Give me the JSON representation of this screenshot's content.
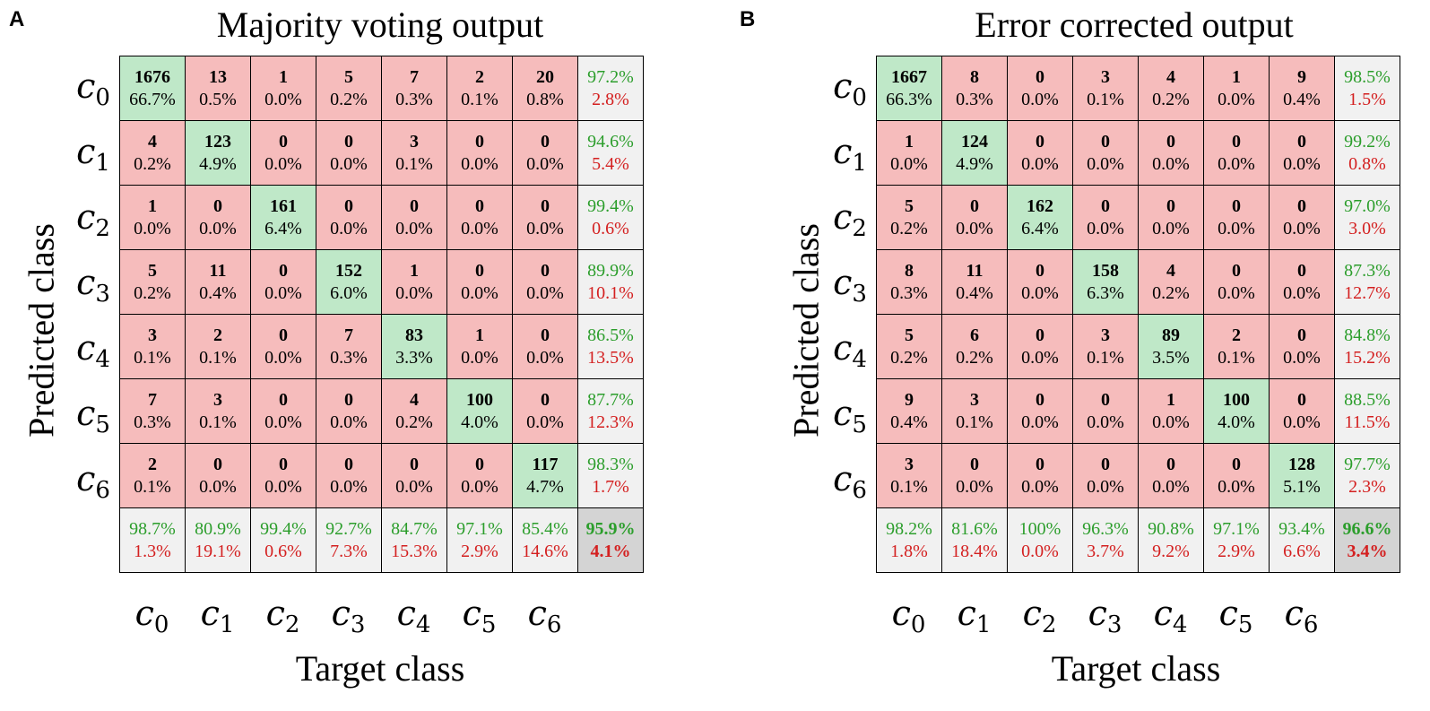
{
  "chart_data": [
    {
      "type": "heatmap",
      "panel_label": "A",
      "title": "Majority voting output",
      "xlabel": "Target class",
      "ylabel": "Predicted class",
      "classes": [
        [
          "c",
          "0"
        ],
        [
          "c",
          "1"
        ],
        [
          "c",
          "2"
        ],
        [
          "c",
          "3"
        ],
        [
          "c",
          "4"
        ],
        [
          "c",
          "5"
        ],
        [
          "c",
          "6"
        ]
      ],
      "colors": {
        "diag": "#bfe8c8",
        "off": "#f6bcbc",
        "summary": "#f1f1f1",
        "corner": "#d4d4d4",
        "acc": "#2c9e2c",
        "err": "#d42020"
      },
      "rows": [
        {
          "cells": [
            [
              "1676",
              "66.7%"
            ],
            [
              "13",
              "0.5%"
            ],
            [
              "1",
              "0.0%"
            ],
            [
              "5",
              "0.2%"
            ],
            [
              "7",
              "0.3%"
            ],
            [
              "2",
              "0.1%"
            ],
            [
              "20",
              "0.8%"
            ]
          ],
          "acc": "97.2%",
          "err": "2.8%"
        },
        {
          "cells": [
            [
              "4",
              "0.2%"
            ],
            [
              "123",
              "4.9%"
            ],
            [
              "0",
              "0.0%"
            ],
            [
              "0",
              "0.0%"
            ],
            [
              "3",
              "0.1%"
            ],
            [
              "0",
              "0.0%"
            ],
            [
              "0",
              "0.0%"
            ]
          ],
          "acc": "94.6%",
          "err": "5.4%"
        },
        {
          "cells": [
            [
              "1",
              "0.0%"
            ],
            [
              "0",
              "0.0%"
            ],
            [
              "161",
              "6.4%"
            ],
            [
              "0",
              "0.0%"
            ],
            [
              "0",
              "0.0%"
            ],
            [
              "0",
              "0.0%"
            ],
            [
              "0",
              "0.0%"
            ]
          ],
          "acc": "99.4%",
          "err": "0.6%"
        },
        {
          "cells": [
            [
              "5",
              "0.2%"
            ],
            [
              "11",
              "0.4%"
            ],
            [
              "0",
              "0.0%"
            ],
            [
              "152",
              "6.0%"
            ],
            [
              "1",
              "0.0%"
            ],
            [
              "0",
              "0.0%"
            ],
            [
              "0",
              "0.0%"
            ]
          ],
          "acc": "89.9%",
          "err": "10.1%"
        },
        {
          "cells": [
            [
              "3",
              "0.1%"
            ],
            [
              "2",
              "0.1%"
            ],
            [
              "0",
              "0.0%"
            ],
            [
              "7",
              "0.3%"
            ],
            [
              "83",
              "3.3%"
            ],
            [
              "1",
              "0.0%"
            ],
            [
              "0",
              "0.0%"
            ]
          ],
          "acc": "86.5%",
          "err": "13.5%"
        },
        {
          "cells": [
            [
              "7",
              "0.3%"
            ],
            [
              "3",
              "0.1%"
            ],
            [
              "0",
              "0.0%"
            ],
            [
              "0",
              "0.0%"
            ],
            [
              "4",
              "0.2%"
            ],
            [
              "100",
              "4.0%"
            ],
            [
              "0",
              "0.0%"
            ]
          ],
          "acc": "87.7%",
          "err": "12.3%"
        },
        {
          "cells": [
            [
              "2",
              "0.1%"
            ],
            [
              "0",
              "0.0%"
            ],
            [
              "0",
              "0.0%"
            ],
            [
              "0",
              "0.0%"
            ],
            [
              "0",
              "0.0%"
            ],
            [
              "0",
              "0.0%"
            ],
            [
              "117",
              "4.7%"
            ]
          ],
          "acc": "98.3%",
          "err": "1.7%"
        }
      ],
      "col_summary": [
        [
          "98.7%",
          "1.3%"
        ],
        [
          "80.9%",
          "19.1%"
        ],
        [
          "99.4%",
          "0.6%"
        ],
        [
          "92.7%",
          "7.3%"
        ],
        [
          "84.7%",
          "15.3%"
        ],
        [
          "97.1%",
          "2.9%"
        ],
        [
          "85.4%",
          "14.6%"
        ]
      ],
      "overall": [
        "95.9%",
        "4.1%"
      ]
    },
    {
      "type": "heatmap",
      "panel_label": "B",
      "title": "Error corrected output",
      "xlabel": "Target class",
      "ylabel": "Predicted class",
      "classes": [
        [
          "c",
          "0"
        ],
        [
          "c",
          "1"
        ],
        [
          "c",
          "2"
        ],
        [
          "c",
          "3"
        ],
        [
          "c",
          "4"
        ],
        [
          "c",
          "5"
        ],
        [
          "c",
          "6"
        ]
      ],
      "colors": {
        "diag": "#bfe8c8",
        "off": "#f6bcbc",
        "summary": "#f1f1f1",
        "corner": "#d4d4d4",
        "acc": "#2c9e2c",
        "err": "#d42020"
      },
      "rows": [
        {
          "cells": [
            [
              "1667",
              "66.3%"
            ],
            [
              "8",
              "0.3%"
            ],
            [
              "0",
              "0.0%"
            ],
            [
              "3",
              "0.1%"
            ],
            [
              "4",
              "0.2%"
            ],
            [
              "1",
              "0.0%"
            ],
            [
              "9",
              "0.4%"
            ]
          ],
          "acc": "98.5%",
          "err": "1.5%"
        },
        {
          "cells": [
            [
              "1",
              "0.0%"
            ],
            [
              "124",
              "4.9%"
            ],
            [
              "0",
              "0.0%"
            ],
            [
              "0",
              "0.0%"
            ],
            [
              "0",
              "0.0%"
            ],
            [
              "0",
              "0.0%"
            ],
            [
              "0",
              "0.0%"
            ]
          ],
          "acc": "99.2%",
          "err": "0.8%"
        },
        {
          "cells": [
            [
              "5",
              "0.2%"
            ],
            [
              "0",
              "0.0%"
            ],
            [
              "162",
              "6.4%"
            ],
            [
              "0",
              "0.0%"
            ],
            [
              "0",
              "0.0%"
            ],
            [
              "0",
              "0.0%"
            ],
            [
              "0",
              "0.0%"
            ]
          ],
          "acc": "97.0%",
          "err": "3.0%"
        },
        {
          "cells": [
            [
              "8",
              "0.3%"
            ],
            [
              "11",
              "0.4%"
            ],
            [
              "0",
              "0.0%"
            ],
            [
              "158",
              "6.3%"
            ],
            [
              "4",
              "0.2%"
            ],
            [
              "0",
              "0.0%"
            ],
            [
              "0",
              "0.0%"
            ]
          ],
          "acc": "87.3%",
          "err": "12.7%"
        },
        {
          "cells": [
            [
              "5",
              "0.2%"
            ],
            [
              "6",
              "0.2%"
            ],
            [
              "0",
              "0.0%"
            ],
            [
              "3",
              "0.1%"
            ],
            [
              "89",
              "3.5%"
            ],
            [
              "2",
              "0.1%"
            ],
            [
              "0",
              "0.0%"
            ]
          ],
          "acc": "84.8%",
          "err": "15.2%"
        },
        {
          "cells": [
            [
              "9",
              "0.4%"
            ],
            [
              "3",
              "0.1%"
            ],
            [
              "0",
              "0.0%"
            ],
            [
              "0",
              "0.0%"
            ],
            [
              "1",
              "0.0%"
            ],
            [
              "100",
              "4.0%"
            ],
            [
              "0",
              "0.0%"
            ]
          ],
          "acc": "88.5%",
          "err": "11.5%"
        },
        {
          "cells": [
            [
              "3",
              "0.1%"
            ],
            [
              "0",
              "0.0%"
            ],
            [
              "0",
              "0.0%"
            ],
            [
              "0",
              "0.0%"
            ],
            [
              "0",
              "0.0%"
            ],
            [
              "0",
              "0.0%"
            ],
            [
              "128",
              "5.1%"
            ]
          ],
          "acc": "97.7%",
          "err": "2.3%"
        }
      ],
      "col_summary": [
        [
          "98.2%",
          "1.8%"
        ],
        [
          "81.6%",
          "18.4%"
        ],
        [
          "100%",
          "0.0%"
        ],
        [
          "96.3%",
          "3.7%"
        ],
        [
          "90.8%",
          "9.2%"
        ],
        [
          "97.1%",
          "2.9%"
        ],
        [
          "93.4%",
          "6.6%"
        ]
      ],
      "overall": [
        "96.6%",
        "3.4%"
      ]
    }
  ]
}
